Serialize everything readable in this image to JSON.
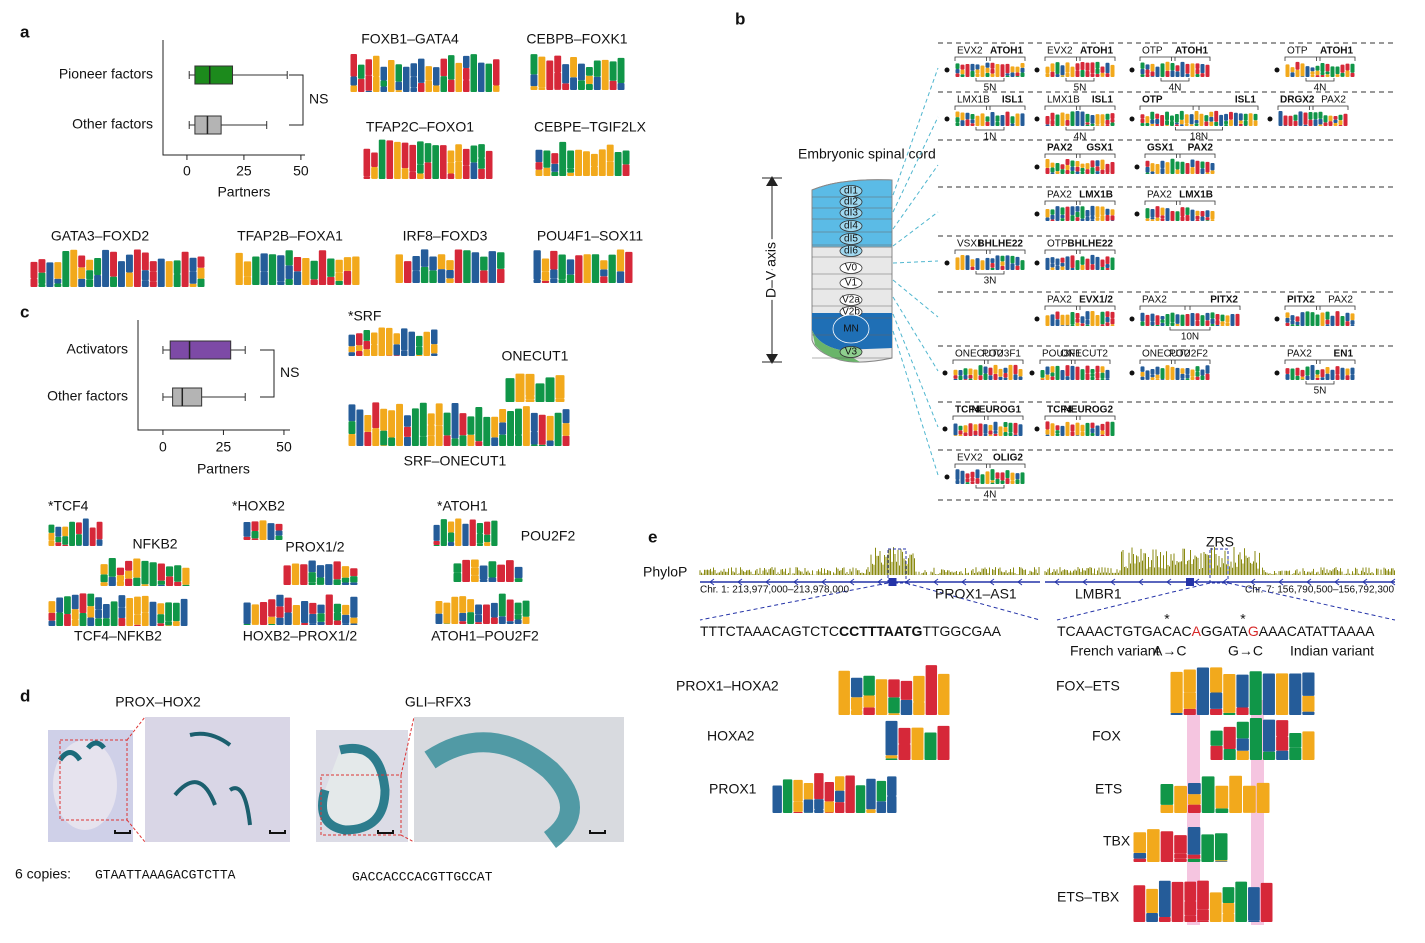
{
  "panel_labels": [
    "a",
    "b",
    "c",
    "d",
    "e"
  ],
  "panel_a": {
    "boxplot": {
      "categories": [
        "Pioneer factors",
        "Other factors"
      ],
      "boxes": [
        {
          "min": 1,
          "q1": 3.5,
          "median": 10,
          "q3": 20,
          "max": 44,
          "color": "#1c8a1c"
        },
        {
          "min": 1,
          "q1": 3.5,
          "median": 9,
          "q3": 15,
          "max": 35,
          "color": "#b4b4b4"
        }
      ],
      "xlabel": "Partners",
      "xlim": [
        -10.5,
        51.8
      ],
      "xticks": [
        0,
        25,
        50
      ],
      "annotation": "NS"
    },
    "motifs": [
      "FOXB1–GATA4",
      "CEBPB–FOXK1",
      "TFAP2C–FOXO1",
      "CEBPE–TGIF2LX",
      "GATA3–FOXD2",
      "TFAP2B–FOXA1",
      "IRF8–FOXD3",
      "POU4F1–SOX11"
    ]
  },
  "panel_b": {
    "title": "Embryonic spinal cord",
    "axis_label": "D–V axis",
    "domains": [
      "dI1",
      "dI2",
      "dI3",
      "dI4",
      "dI5",
      "dI6",
      "V0",
      "V1",
      "V2a",
      "V2b",
      "MN",
      "V3"
    ],
    "rows": [
      [
        {
          "left": "EVX2",
          "right": "ATOH1",
          "spacing": "5N",
          "bold": "right"
        },
        {
          "left": "EVX2",
          "right": "ATOH1",
          "spacing": "5N",
          "bold": "right"
        },
        {
          "left": "OTP",
          "right": "ATOH1",
          "spacing": "4N",
          "bold": "right"
        },
        {
          "left": "OTP",
          "right": "ATOH1",
          "spacing": "4N",
          "bold": "right"
        }
      ],
      [
        {
          "left": "LMX1B",
          "right": "ISL1",
          "spacing": "1N",
          "bold": "right"
        },
        {
          "left": "LMX1B",
          "right": "ISL1",
          "spacing": "4N",
          "bold": "right"
        },
        {
          "left": "OTP",
          "right": "ISL1",
          "spacing": "18N",
          "bold": "both"
        },
        {
          "left": "DRGX2",
          "right": "PAX2",
          "bold": "left"
        }
      ],
      [
        {
          "left": "PAX2",
          "right": "GSX1",
          "bold": "both"
        },
        {
          "left": "GSX1",
          "right": "PAX2",
          "bold": "both"
        }
      ],
      [
        {
          "left": "PAX2",
          "right": "LMX1B",
          "bold": "right"
        },
        {
          "left": "PAX2",
          "right": "LMX1B",
          "bold": "right"
        }
      ],
      [
        {
          "left": "VSX1",
          "right": "BHLHE22",
          "spacing": "3N",
          "bold": "right"
        },
        {
          "left": "OTP",
          "right": "BHLHE22",
          "bold": "right"
        }
      ],
      [
        {
          "left": "PAX2",
          "right": "EVX1/2",
          "bold": "right"
        },
        {
          "left": "PAX2",
          "right": "PITX2",
          "spacing": "10N",
          "bold": "right"
        },
        {
          "left": "PITX2",
          "right": "PAX2",
          "bold": "left"
        }
      ],
      [
        {
          "left": "ONECUT2",
          "right": "POU3F1",
          "bold": "none"
        },
        {
          "left": "POU3F1",
          "right": "ONECUT2",
          "bold": "none"
        },
        {
          "left": "ONECUT2",
          "right": "POU2F2",
          "bold": "none"
        },
        {
          "left": "PAX2",
          "right": "EN1",
          "spacing": "5N",
          "bold": "right"
        }
      ],
      [
        {
          "left": "TCF4",
          "right": "NEUROG1",
          "bold": "both"
        },
        {
          "left": "TCF4",
          "right": "NEUROG2",
          "bold": "both"
        }
      ],
      [
        {
          "left": "EVX2",
          "right": "OLIG2",
          "spacing": "4N",
          "bold": "right"
        }
      ]
    ]
  },
  "panel_c": {
    "boxplot": {
      "categories": [
        "Activators",
        "Other factors"
      ],
      "boxes": [
        {
          "min": 0,
          "q1": 3,
          "median": 11,
          "q3": 28,
          "max": 34,
          "color": "#7d4aa6"
        },
        {
          "min": 0,
          "q1": 4,
          "median": 8,
          "q3": 16,
          "max": 34,
          "color": "#b4b4b4"
        }
      ],
      "xlabel": "Partners",
      "xlim": [
        -10.3,
        52.5
      ],
      "xticks": [
        0,
        25,
        50
      ],
      "annotation": "NS"
    },
    "motifs": [
      "*SRF",
      "ONECUT1",
      "SRF–ONECUT1",
      "*TCF4",
      "NFKB2",
      "TCF4–NFKB2",
      "*HOXB2",
      "PROX1/2",
      "HOXB2–PROX1/2",
      "*ATOH1",
      "POU2F2",
      "ATOH1–POU2F2"
    ]
  },
  "panel_d": {
    "constructs": [
      "PROX–HOX2",
      "GLI–RFX3"
    ],
    "copies_label": "6 copies:",
    "sequences": [
      "GTAATTAAAGACGTCTTA",
      "GACCACCCACGTTGCCAT"
    ]
  },
  "panel_e": {
    "track_label": "PhyloP",
    "loci": [
      {
        "name": "PROX1–AS1",
        "coords": "Chr. 1: 213,977,000–213,978,000"
      },
      {
        "name": "LMBR1",
        "coords": "Chr. 7: 156,790,500–156,792,300",
        "element": "ZRS"
      }
    ],
    "sequences": [
      [
        "TTTCTAAACAGTCTC",
        "CCTTTAATG",
        "TTGGCGAA"
      ],
      [
        "TCAAACTGTGACAC",
        "A",
        "GGATA",
        "G",
        "AAACATATTAAAA"
      ]
    ],
    "variant_marks": [
      "*",
      "*"
    ],
    "variant_labels": [
      "French variant",
      "A→C",
      "G→C",
      "Indian variant"
    ],
    "motifs": [
      "PROX1–HOXA2",
      "HOXA2",
      "PROX1",
      "FOX–ETS",
      "FOX",
      "ETS",
      "TBX",
      "ETS–TBX"
    ]
  }
}
